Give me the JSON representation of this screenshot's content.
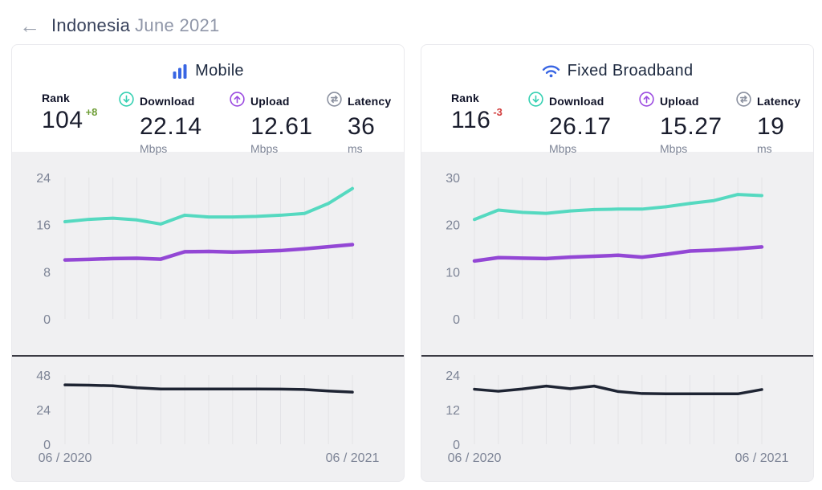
{
  "header": {
    "back": "←",
    "country": "Indonesia",
    "period": "June 2021"
  },
  "colors": {
    "brand_blue": "#3865e3",
    "download_teal": "#55d9c0",
    "upload_purple": "#9347d5",
    "latency_dark": "#1e2433",
    "delta_up_green": "#6f9e37",
    "delta_down_red": "#d23c3c",
    "axis_gray": "#7d8496",
    "gridline": "#e3e3e7",
    "panel_gray": "#f0f0f2"
  },
  "panels": [
    {
      "title": "Mobile",
      "title_icon": "mobile-bars-icon",
      "stats": {
        "rank": {
          "label": "Rank",
          "value": "104",
          "delta": "+8"
        },
        "download": {
          "label": "Download",
          "value": "22.14",
          "unit": "Mbps",
          "icon": "download-circle-icon"
        },
        "upload": {
          "label": "Upload",
          "value": "12.61",
          "unit": "Mbps",
          "icon": "upload-circle-icon"
        },
        "latency": {
          "label": "Latency",
          "value": "36",
          "unit": "ms",
          "icon": "latency-circle-icon"
        }
      },
      "xaxis": {
        "start": "06 / 2020",
        "end": "06 / 2021"
      }
    },
    {
      "title": "Fixed Broadband",
      "title_icon": "wifi-icon",
      "stats": {
        "rank": {
          "label": "Rank",
          "value": "116",
          "delta": "-3"
        },
        "download": {
          "label": "Download",
          "value": "26.17",
          "unit": "Mbps",
          "icon": "download-circle-icon"
        },
        "upload": {
          "label": "Upload",
          "value": "15.27",
          "unit": "Mbps",
          "icon": "upload-circle-icon"
        },
        "latency": {
          "label": "Latency",
          "value": "19",
          "unit": "ms",
          "icon": "latency-circle-icon"
        }
      },
      "xaxis": {
        "start": "06 / 2020",
        "end": "06 / 2021"
      }
    }
  ],
  "chart_data": [
    {
      "id": "mobile-speeds",
      "type": "line",
      "row": "top",
      "title": "Mobile download & upload speed, monthly",
      "ylabel": "Mbps",
      "ylim": [
        0,
        24
      ],
      "yticks": [
        24,
        16,
        8,
        0
      ],
      "grid": "vertical",
      "x_axis": {
        "start": "06 / 2020",
        "end": "06 / 2021",
        "points": 13
      },
      "series": [
        {
          "name": "Download (Mbps)",
          "color": "#55d9c0",
          "values": [
            16.5,
            16.9,
            17.1,
            16.8,
            16.1,
            17.6,
            17.3,
            17.3,
            17.4,
            17.6,
            17.9,
            19.6,
            22.14
          ]
        },
        {
          "name": "Upload (Mbps)",
          "color": "#9347d5",
          "values": [
            10.0,
            10.1,
            10.25,
            10.3,
            10.15,
            11.4,
            11.45,
            11.35,
            11.45,
            11.6,
            11.9,
            12.25,
            12.61
          ]
        }
      ]
    },
    {
      "id": "mobile-latency",
      "type": "line",
      "row": "bottom",
      "title": "Mobile latency, monthly",
      "ylabel": "ms",
      "ylim": [
        0,
        48
      ],
      "yticks": [
        48,
        24,
        0
      ],
      "grid": "vertical",
      "x_axis": {
        "start": "06 / 2020",
        "end": "06 / 2021",
        "points": 13
      },
      "series": [
        {
          "name": "Latency (ms)",
          "color": "#1e2433",
          "values": [
            41.2,
            41.0,
            40.6,
            39.2,
            38.4,
            38.4,
            38.4,
            38.4,
            38.4,
            38.3,
            38.0,
            37.0,
            36.2
          ]
        }
      ]
    },
    {
      "id": "fixed-speeds",
      "type": "line",
      "row": "top",
      "title": "Fixed broadband download & upload speed, monthly",
      "ylabel": "Mbps",
      "ylim": [
        0,
        30
      ],
      "yticks": [
        30,
        20,
        10,
        0
      ],
      "grid": "vertical",
      "x_axis": {
        "start": "06 / 2020",
        "end": "06 / 2021",
        "points": 13
      },
      "series": [
        {
          "name": "Download (Mbps)",
          "color": "#55d9c0",
          "values": [
            21.1,
            23.1,
            22.6,
            22.4,
            22.9,
            23.2,
            23.3,
            23.3,
            23.8,
            24.5,
            25.1,
            26.4,
            26.17
          ]
        },
        {
          "name": "Upload (Mbps)",
          "color": "#9347d5",
          "values": [
            12.3,
            13.0,
            12.9,
            12.8,
            13.1,
            13.3,
            13.5,
            13.1,
            13.7,
            14.4,
            14.6,
            14.9,
            15.27
          ]
        }
      ]
    },
    {
      "id": "fixed-latency",
      "type": "line",
      "row": "bottom",
      "title": "Fixed broadband latency, monthly",
      "ylabel": "ms",
      "ylim": [
        0,
        24
      ],
      "yticks": [
        24,
        12,
        0
      ],
      "grid": "vertical",
      "x_axis": {
        "start": "06 / 2020",
        "end": "06 / 2021",
        "points": 13
      },
      "series": [
        {
          "name": "Latency (ms)",
          "color": "#1e2433",
          "values": [
            19.1,
            18.4,
            19.2,
            20.2,
            19.3,
            20.2,
            18.3,
            17.6,
            17.5,
            17.5,
            17.5,
            17.5,
            19.0
          ]
        }
      ]
    }
  ]
}
